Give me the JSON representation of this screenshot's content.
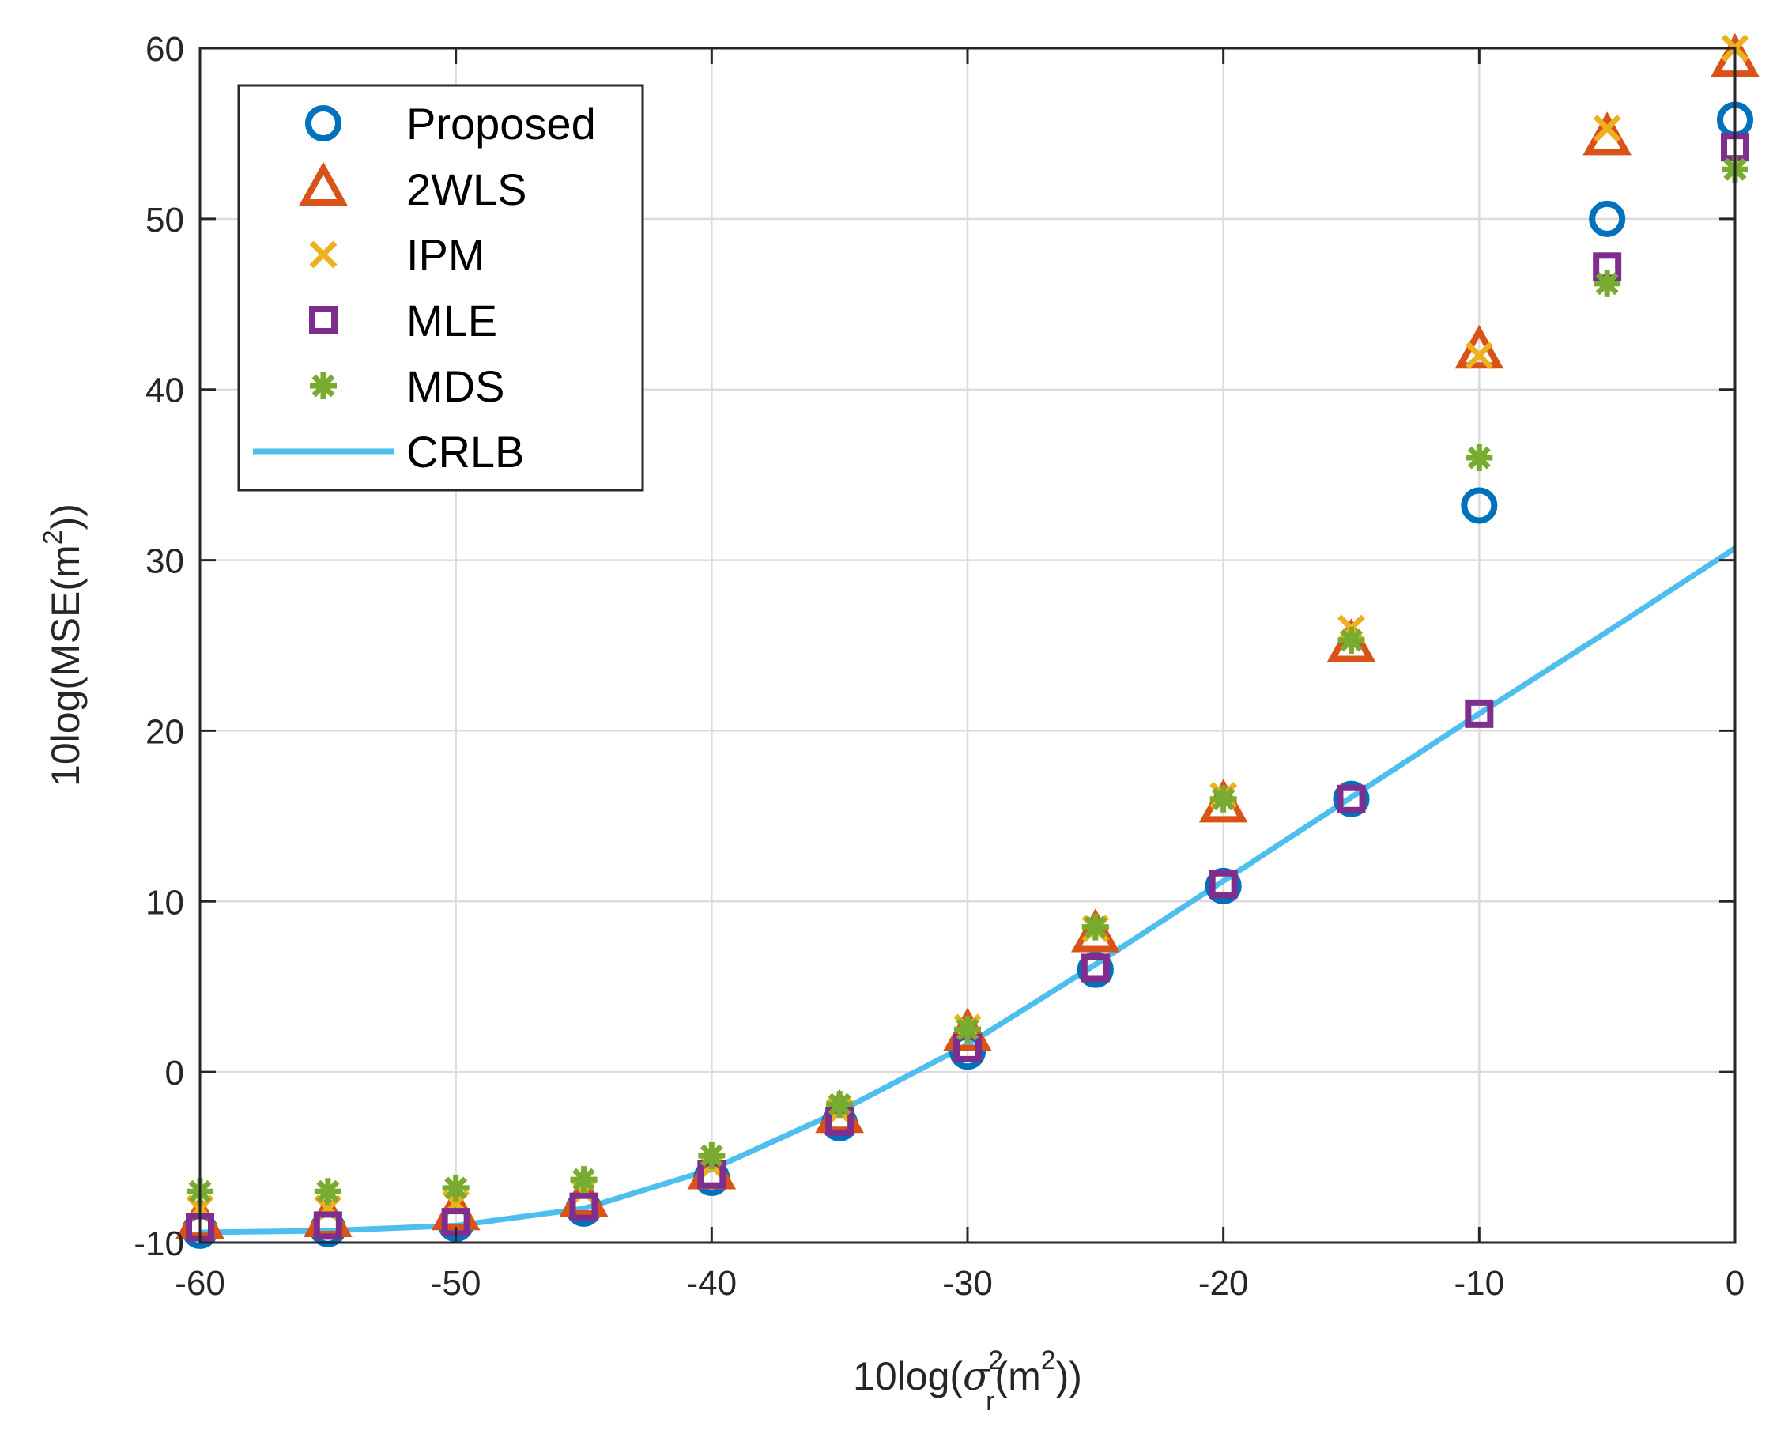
{
  "chart_data": {
    "type": "scatter",
    "title": "",
    "xlabel": "10log(σr2(m2))",
    "ylabel": "10log(MSE(m2))",
    "xlabel_parts": {
      "pre": "10log(",
      "sigma": "σ",
      "sub": "r",
      "sup": "2",
      "mid": "(m",
      "sup2": "2",
      "post": "))"
    },
    "ylabel_parts": {
      "pre": "10log(MSE(m",
      "sup": "2",
      "post": "))"
    },
    "xlim": [
      -60,
      0
    ],
    "ylim": [
      -10,
      60
    ],
    "xticks": [
      -60,
      -50,
      -40,
      -30,
      -20,
      -10,
      0
    ],
    "yticks": [
      -10,
      0,
      10,
      20,
      30,
      40,
      50,
      60
    ],
    "xtick_labels": [
      "-60",
      "-50",
      "-40",
      "-30",
      "-20",
      "-10",
      "0"
    ],
    "ytick_labels": [
      "-10",
      "0",
      "10",
      "20",
      "30",
      "40",
      "50",
      "60"
    ],
    "grid": true,
    "legend_position": "top-left",
    "x": [
      -60,
      -55,
      -50,
      -45,
      -40,
      -35,
      -30,
      -25,
      -20,
      -15,
      -10,
      -5,
      0
    ],
    "series": [
      {
        "name": "Proposed",
        "marker": "circle",
        "color": "#0072BD",
        "values": [
          -9.3,
          -9.2,
          -8.9,
          -8.0,
          -6.2,
          -3.0,
          1.2,
          6.0,
          10.9,
          16.0,
          33.2,
          50.0,
          55.8
        ]
      },
      {
        "name": "2WLS",
        "marker": "triangle",
        "color": "#D95319",
        "values": [
          -8.8,
          -8.7,
          -8.3,
          -7.5,
          -5.9,
          -2.6,
          2.2,
          8.0,
          15.6,
          25.0,
          42.2,
          54.7,
          59.3
        ]
      },
      {
        "name": "IPM",
        "marker": "x",
        "color": "#EDB120",
        "values": [
          -8.0,
          -8.0,
          -7.7,
          -7.0,
          -5.5,
          -2.3,
          2.6,
          8.4,
          16.2,
          26.0,
          42.0,
          55.3,
          60.0
        ]
      },
      {
        "name": "MLE",
        "marker": "square",
        "color": "#7E2F8E",
        "values": [
          -9.1,
          -9.0,
          -8.8,
          -7.9,
          -6.0,
          -2.9,
          1.4,
          6.1,
          11.0,
          16.0,
          21.0,
          47.2,
          54.2
        ]
      },
      {
        "name": "MDS",
        "marker": "asterisk",
        "color": "#77AC30",
        "values": [
          -7.0,
          -7.0,
          -6.8,
          -6.3,
          -4.9,
          -1.9,
          2.5,
          8.5,
          16.0,
          25.3,
          36.0,
          46.2,
          52.9
        ]
      },
      {
        "name": "CRLB",
        "marker": "line",
        "color": "#4DBEEE",
        "values": [
          -9.4,
          -9.3,
          -9.0,
          -8.0,
          -5.7,
          -2.3,
          1.6,
          6.3,
          11.2,
          16.1,
          21.0,
          25.8,
          30.7
        ]
      }
    ]
  },
  "colors": {
    "axis": "#262626",
    "grid": "#dcdcdc",
    "background": "#ffffff"
  }
}
